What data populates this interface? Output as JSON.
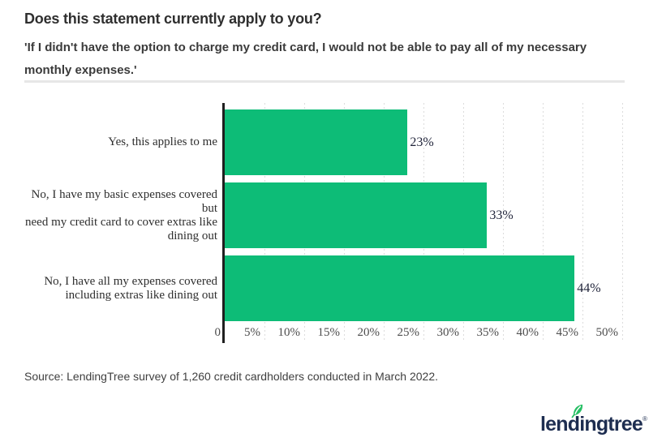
{
  "header": {
    "title": "Does this statement currently apply to you?",
    "subtitle": "'If I didn't have the option to charge my credit card, I would not be able to pay all of my necessary\nmonthly expenses.'"
  },
  "chart_data": {
    "type": "bar",
    "orientation": "horizontal",
    "categories": [
      "Yes, this applies to me",
      "No, I have my basic expenses covered but need my credit card to cover extras like dining out",
      "No, I have all my expenses covered including extras like dining out"
    ],
    "category_lines": [
      [
        "Yes, this applies to me"
      ],
      [
        "No, I have my basic expenses covered but",
        "need my credit card to cover extras like",
        "dining out"
      ],
      [
        "No, I have all my expenses covered",
        "including extras like dining out"
      ]
    ],
    "values": [
      23,
      33,
      44
    ],
    "value_labels": [
      "23%",
      "33%",
      "44%"
    ],
    "xlim": [
      0,
      50
    ],
    "x_ticks": [
      0,
      5,
      10,
      15,
      20,
      25,
      30,
      35,
      40,
      45,
      50
    ],
    "x_tick_labels": [
      "0",
      "5%",
      "10%",
      "15%",
      "20%",
      "25%",
      "30%",
      "35%",
      "40%",
      "45%",
      "50%"
    ],
    "grid": "vertical-dashed",
    "legend": "none",
    "bar_color": "#0dbc77"
  },
  "footer": {
    "source": "Source: LendingTree survey of 1,260 credit cardholders conducted in March 2022.",
    "logo_text_before_leaf": "lend",
    "logo_text_i": "i",
    "logo_text_after_leaf": "ngtree",
    "logo_mark": "®"
  },
  "colors": {
    "bar_green": "#0dbc77",
    "leaf_green": "#26bf64",
    "logo_navy": "#1d2d50",
    "axis_black": "#1f1f1f",
    "gridline_gray": "#dcdcdc",
    "divider_gray": "#e7e7e7",
    "title_gray": "#2f2f2f"
  }
}
